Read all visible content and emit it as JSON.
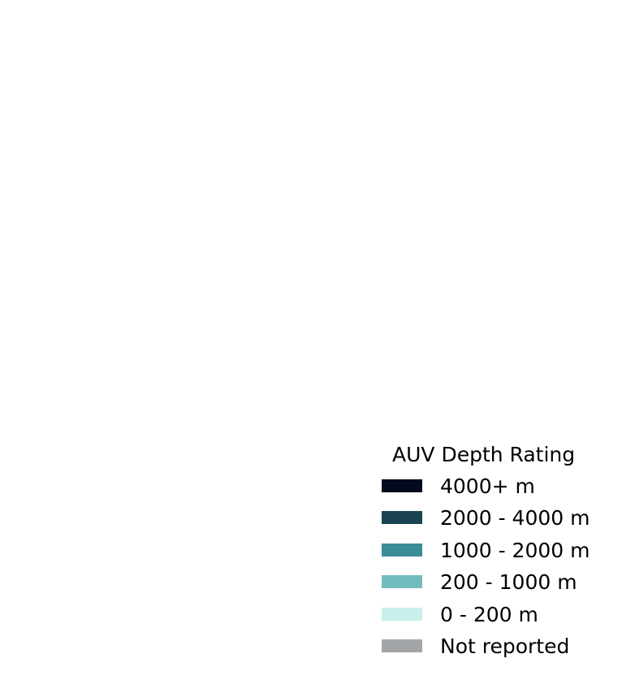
{
  "legend": {
    "title": "AUV Depth Rating",
    "items": [
      {
        "label": "4000+ m",
        "color": "#020c1e"
      },
      {
        "label": "2000 - 4000 m",
        "color": "#1a4452"
      },
      {
        "label": "1000 - 2000 m",
        "color": "#3a8c96"
      },
      {
        "label": "200 - 1000 m",
        "color": "#72bcbf"
      },
      {
        "label": "0 - 200 m",
        "color": "#c7efec"
      },
      {
        "label": "Not reported",
        "color": "#a3a6a8"
      }
    ]
  }
}
